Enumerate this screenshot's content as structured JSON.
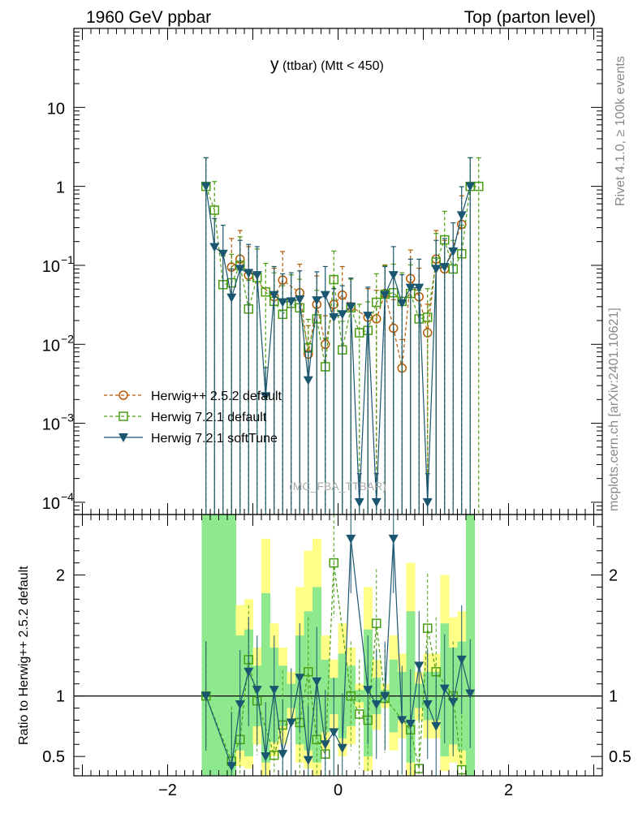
{
  "header": {
    "left": "1960 GeV ppbar",
    "right": "Top (parton level)"
  },
  "side_labels": {
    "rivet": "Rivet 4.1.0, ≥ 100k events",
    "mcplots": "mcplots.cern.ch [arXiv:2401.10621]"
  },
  "ratio_ylabel": "Ratio to Herwig++ 2.5.2 default",
  "colors": {
    "herwigpp": "#b35900",
    "herwig721": "#4a9e13",
    "softtune": "#1b5670",
    "band_yellow": "#ffff88",
    "band_green": "#8ee88e"
  },
  "chart_data": [
    {
      "type": "line",
      "title": "y",
      "title_suffix": "(ttbar) (Mtt < 450)",
      "watermark": "(MC_FBA_TTBAR)",
      "xlabel": "",
      "ylabel": "",
      "yscale": "log",
      "xlim": [
        -3.1,
        3.1
      ],
      "ylim": [
        7e-05,
        100
      ],
      "x_ticks": [
        -2,
        0,
        2
      ],
      "x_tick_labels": [
        "−2",
        "0",
        "2"
      ],
      "y_ticks": [
        0.0001,
        0.001,
        0.01,
        0.1,
        1,
        10
      ],
      "y_tick_labels": [
        [
          "10",
          "−4"
        ],
        [
          "10",
          "−3"
        ],
        [
          "10",
          "−2"
        ],
        [
          "10",
          "−1"
        ],
        [
          "1",
          ""
        ],
        [
          "10",
          ""
        ]
      ],
      "legend": "bottom-left",
      "series": [
        {
          "name": "Herwig++ 2.5.2 default",
          "marker": "circle",
          "x": [
            -1.25,
            -1.15,
            -1.05,
            -0.75,
            -0.65,
            -0.45,
            -0.35,
            -0.25,
            -0.15,
            -0.05,
            0.05,
            0.15,
            0.35,
            0.45,
            0.55,
            0.65,
            0.75,
            0.85,
            0.95,
            1.05,
            1.15,
            1.25,
            1.45
          ],
          "y": [
            0.095,
            0.12,
            0.075,
            0.04,
            0.065,
            0.045,
            0.0075,
            0.032,
            0.01,
            0.032,
            0.042,
            0.03,
            0.022,
            0.021,
            0.044,
            0.016,
            0.005,
            0.068,
            0.04,
            0.014,
            0.12,
            0.09,
            0.33
          ]
        },
        {
          "name": "Herwig 7.2.1 default",
          "marker": "square",
          "x": [
            -1.55,
            -1.45,
            -1.35,
            -1.25,
            -1.15,
            -1.05,
            -0.95,
            -0.85,
            -0.75,
            -0.65,
            -0.55,
            -0.45,
            -0.35,
            -0.25,
            -0.15,
            -0.05,
            0.05,
            0.15,
            0.25,
            0.35,
            0.45,
            0.55,
            0.65,
            0.75,
            0.85,
            0.95,
            1.05,
            1.15,
            1.25,
            1.35,
            1.45,
            1.55,
            1.65
          ],
          "y": [
            1.0,
            0.5,
            0.057,
            0.06,
            0.1,
            0.028,
            0.07,
            0.046,
            0.035,
            0.024,
            0.033,
            0.029,
            0.009,
            0.021,
            0.0052,
            0.066,
            0.0085,
            0.029,
            0.014,
            0.015,
            0.034,
            0.043,
            0.045,
            0.035,
            0.044,
            0.021,
            0.022,
            0.11,
            0.21,
            0.09,
            0.14,
            1.0,
            1.0
          ]
        },
        {
          "name": "Herwig 7.2.1 softTune",
          "marker": "triangle-down",
          "x": [
            -1.55,
            -1.45,
            -1.35,
            -1.25,
            -1.15,
            -1.05,
            -0.95,
            -0.85,
            -0.75,
            -0.65,
            -0.55,
            -0.45,
            -0.35,
            -0.25,
            -0.15,
            -0.05,
            0.05,
            0.15,
            0.25,
            0.35,
            0.45,
            0.55,
            0.65,
            0.75,
            0.85,
            0.95,
            1.05,
            1.15,
            1.25,
            1.35,
            1.45,
            1.55
          ],
          "y": [
            1.0,
            0.17,
            0.14,
            0.039,
            0.09,
            0.08,
            0.075,
            0.0022,
            0.042,
            0.034,
            0.035,
            0.037,
            0.0035,
            0.036,
            0.042,
            0.022,
            0.024,
            0.03,
            0.0001,
            0.023,
            0.0001,
            0.042,
            0.075,
            0.033,
            0.052,
            0.052,
            0.0001,
            0.09,
            0.095,
            0.15,
            0.43,
            1.0
          ]
        }
      ]
    },
    {
      "type": "line",
      "title": "",
      "xlabel": "",
      "ylabel": "Ratio to Herwig++ 2.5.2 default",
      "xlim": [
        -3.1,
        3.1
      ],
      "ylim": [
        0.34,
        2.5
      ],
      "x_ticks": [
        -2,
        0,
        2
      ],
      "x_tick_labels": [
        "−2",
        "0",
        "2"
      ],
      "y_ticks": [
        0.5,
        1,
        2
      ],
      "y_tick_labels": [
        "0.5",
        "1",
        "2"
      ],
      "band_x": [
        -1.6,
        -1.5,
        -1.4,
        -1.3,
        -1.2,
        -1.1,
        -1.0,
        -0.9,
        -0.8,
        -0.7,
        -0.6,
        -0.5,
        -0.4,
        -0.3,
        -0.2,
        -0.1,
        0.0,
        0.1,
        0.2,
        0.3,
        0.4,
        0.5,
        0.6,
        0.7,
        0.8,
        0.9,
        1.0,
        1.1,
        1.2,
        1.3,
        1.4,
        1.5
      ],
      "band_yellow_hi": [
        2.5,
        2.5,
        2.5,
        2.5,
        1.75,
        1.8,
        1.4,
        2.3,
        1.6,
        1.4,
        1.2,
        1.9,
        2.2,
        2.3,
        1.5,
        1.3,
        1.6,
        1.4,
        1.1,
        1.9,
        1.3,
        1.1,
        1.5,
        1.35,
        2.1,
        1.2,
        1.35,
        1.35,
        2.0,
        1.65,
        1.7,
        2.5
      ],
      "band_green_hi": [
        2.5,
        2.5,
        2.5,
        2.5,
        1.5,
        1.55,
        1.25,
        1.85,
        1.4,
        1.25,
        1.1,
        1.5,
        1.7,
        1.9,
        1.3,
        1.15,
        1.35,
        1.25,
        1.05,
        1.55,
        1.15,
        1.05,
        1.3,
        1.2,
        1.7,
        1.1,
        1.2,
        1.2,
        1.6,
        1.4,
        1.45,
        2.5
      ],
      "band_green_lo": [
        0.34,
        0.34,
        0.34,
        0.34,
        0.55,
        0.5,
        0.75,
        0.45,
        0.62,
        0.75,
        0.9,
        0.6,
        0.55,
        0.45,
        0.7,
        0.85,
        0.65,
        0.75,
        0.95,
        0.5,
        0.85,
        0.95,
        0.7,
        0.8,
        0.45,
        0.9,
        0.8,
        0.8,
        0.5,
        0.6,
        0.55,
        0.34
      ],
      "band_yellow_lo": [
        0.34,
        0.34,
        0.34,
        0.34,
        0.42,
        0.4,
        0.6,
        0.34,
        0.5,
        0.6,
        0.8,
        0.45,
        0.4,
        0.34,
        0.55,
        0.72,
        0.5,
        0.6,
        0.9,
        0.38,
        0.72,
        0.9,
        0.55,
        0.65,
        0.34,
        0.8,
        0.65,
        0.65,
        0.38,
        0.45,
        0.42,
        0.34
      ],
      "series": [
        {
          "name": "Herwig 7.2.1 default",
          "marker": "square",
          "x": [
            -1.55,
            -1.25,
            -1.15,
            -1.05,
            -0.95,
            -0.75,
            -0.65,
            -0.45,
            -0.35,
            -0.25,
            -0.15,
            -0.05,
            0.15,
            0.25,
            0.35,
            0.45,
            0.55,
            0.85,
            0.95,
            1.05,
            1.15,
            1.35,
            1.45
          ],
          "y": [
            1.0,
            0.46,
            0.64,
            1.3,
            0.96,
            0.51,
            0.76,
            0.78,
            1.2,
            0.64,
            0.52,
            2.1,
            1.0,
            0.85,
            0.8,
            1.6,
            0.98,
            0.72,
            0.4,
            1.56,
            1.2,
            1.0,
            0.39
          ]
        },
        {
          "name": "Herwig 7.2.1 softTune",
          "marker": "triangle-down",
          "x": [
            -1.55,
            -1.25,
            -1.15,
            -1.05,
            -0.95,
            -0.85,
            -0.75,
            -0.65,
            -0.55,
            -0.45,
            -0.35,
            -0.25,
            -0.15,
            -0.05,
            0.05,
            0.15,
            0.35,
            0.45,
            0.55,
            0.65,
            0.75,
            0.85,
            0.95,
            1.05,
            1.15,
            1.25,
            1.35,
            1.45,
            1.55
          ],
          "y": [
            1.0,
            0.42,
            0.93,
            1.2,
            1.05,
            0.5,
            1.05,
            0.52,
            0.78,
            1.15,
            0.47,
            1.12,
            0.6,
            0.7,
            0.57,
            2.3,
            1.05,
            0.93,
            1.0,
            2.3,
            0.8,
            0.77,
            1.25,
            0.93,
            0.75,
            1.06,
            0.95,
            1.3,
            1.02
          ]
        }
      ]
    }
  ]
}
